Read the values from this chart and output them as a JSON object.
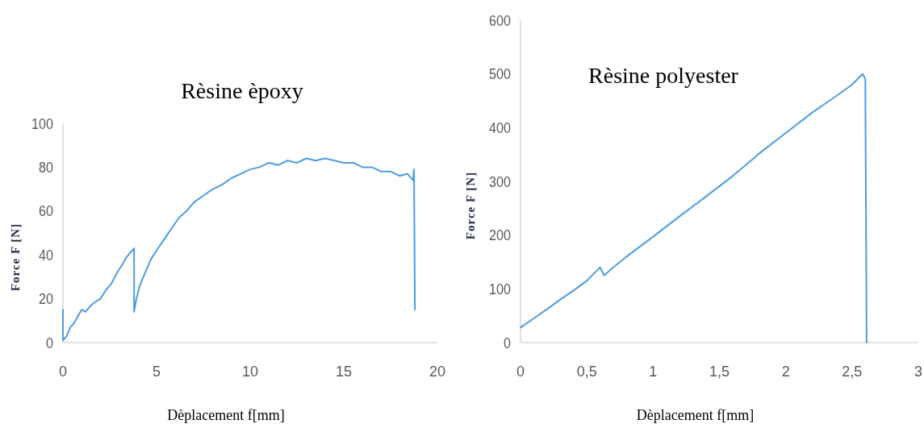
{
  "chart_data": [
    {
      "type": "line",
      "title": "Rèsine èpoxy",
      "xlabel": "Dèplacement f[mm]",
      "ylabel": "Force  F [N]",
      "xlim": [
        0,
        20
      ],
      "xticks": [
        0,
        5,
        10,
        15,
        20
      ],
      "ylim": [
        0,
        100
      ],
      "yticks": [
        0,
        20,
        40,
        60,
        80,
        100
      ],
      "grid": false,
      "marker": "none",
      "line_style": "solid",
      "series": [
        {
          "color": "#4d9de0",
          "x": [
            0,
            0,
            0.2,
            0.4,
            0.6,
            0.8,
            1.0,
            1.2,
            1.5,
            1.8,
            2.0,
            2.3,
            2.6,
            2.9,
            3.2,
            3.4,
            3.6,
            3.8,
            3.8,
            3.9,
            4.1,
            4.4,
            4.7,
            5.0,
            5.4,
            5.8,
            6.2,
            6.6,
            7.0,
            7.5,
            8.0,
            8.5,
            9.0,
            9.5,
            10.0,
            10.5,
            11.0,
            11.5,
            12.0,
            12.5,
            13.0,
            13.5,
            14.0,
            14.5,
            15.0,
            15.5,
            16.0,
            16.5,
            17.0,
            17.5,
            18.0,
            18.4,
            18.7,
            18.75,
            18.8
          ],
          "values": [
            15,
            1,
            3,
            7,
            9,
            12,
            15,
            14,
            17,
            19,
            20,
            24,
            27,
            32,
            36,
            39,
            41,
            43,
            14,
            19,
            26,
            32,
            38,
            42,
            47,
            52,
            57,
            60,
            64,
            67,
            70,
            72,
            75,
            77,
            79,
            80,
            82,
            81,
            83,
            82,
            84,
            83,
            84,
            83,
            82,
            82,
            80,
            80,
            78,
            78,
            76,
            77,
            74,
            79,
            15
          ]
        }
      ]
    },
    {
      "type": "line",
      "title": "Rèsine polyester",
      "xlabel": "Dèplacement f[mm]",
      "ylabel": "Force  F [N]",
      "xlim": [
        0,
        3
      ],
      "xticks": [
        0,
        {
          "value": 0.5,
          "label": "0,5"
        },
        1,
        {
          "value": 1.5,
          "label": "1,5"
        },
        2,
        {
          "value": 2.5,
          "label": "2,5"
        },
        3
      ],
      "ylim": [
        0,
        600
      ],
      "yticks": [
        0,
        100,
        200,
        300,
        400,
        500,
        600
      ],
      "grid": false,
      "marker": "none",
      "line_style": "solid",
      "series": [
        {
          "color": "#4d9de0",
          "x": [
            0,
            0.1,
            0.2,
            0.3,
            0.4,
            0.5,
            0.56,
            0.6,
            0.63,
            0.7,
            0.8,
            1.0,
            1.2,
            1.4,
            1.6,
            1.76,
            1.8,
            2.0,
            2.2,
            2.4,
            2.5,
            2.56,
            2.58,
            2.6,
            2.61
          ],
          "values": [
            28,
            45,
            62,
            80,
            97,
            115,
            130,
            140,
            125,
            140,
            160,
            197,
            235,
            272,
            310,
            343,
            352,
            390,
            428,
            462,
            480,
            495,
            500,
            490,
            0
          ]
        }
      ]
    }
  ]
}
